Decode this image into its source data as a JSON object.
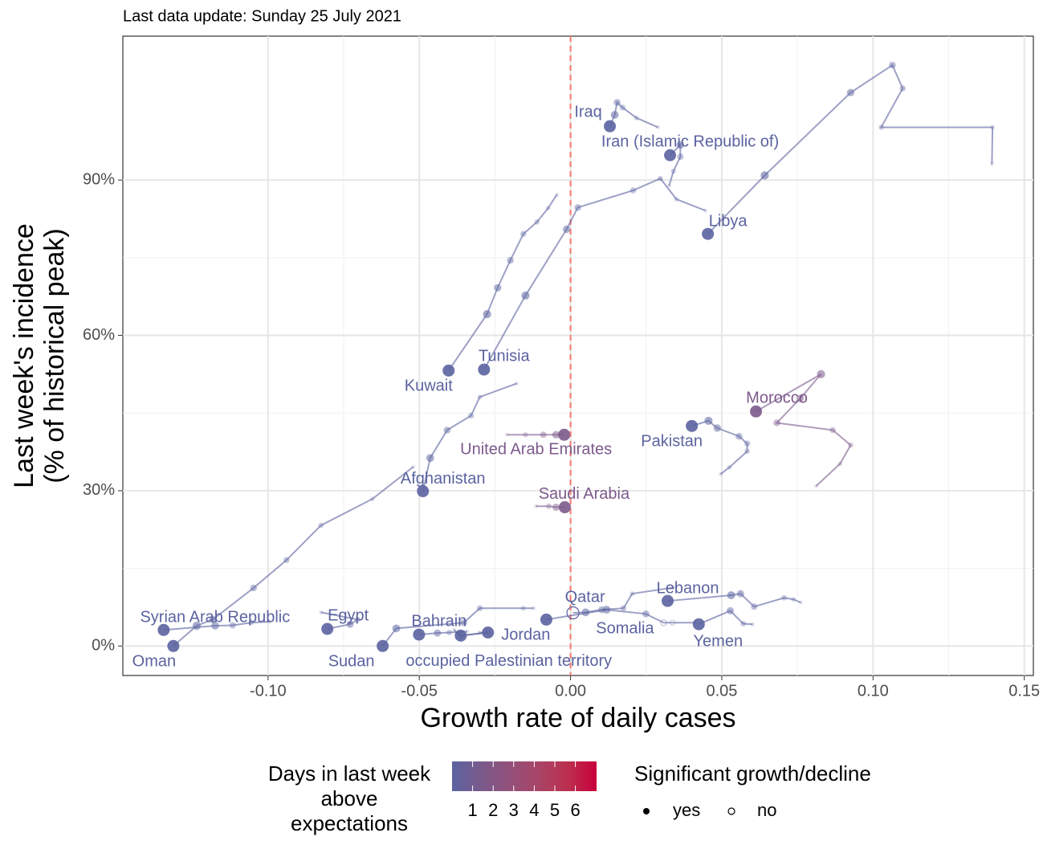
{
  "chart_data": {
    "type": "scatter",
    "subtitle": "Last data update: Sunday 25 July 2021",
    "x_label": "Growth rate of daily cases",
    "y_label": [
      "Last week's incidence",
      "(% of historical peak)"
    ],
    "xlim": [
      -0.148,
      0.153
    ],
    "ylim": [
      -5.7,
      117.8
    ],
    "xticks": [
      {
        "value": -0.1,
        "label": "-0.10"
      },
      {
        "value": -0.05,
        "label": "-0.05"
      },
      {
        "value": 0,
        "label": "0.00"
      },
      {
        "value": 0.05,
        "label": "0.05"
      },
      {
        "value": 0.1,
        "label": "0.10"
      },
      0.15
    ],
    "yticks": [
      {
        "value": 0,
        "label": "0%"
      },
      {
        "value": 30,
        "label": "30%"
      },
      {
        "value": 60,
        "label": "60%"
      },
      {
        "value": 90,
        "label": "90%"
      }
    ],
    "grid": true,
    "reference_line_x": 0,
    "reference_line_color": "#f8766d",
    "series": [
      {
        "name": "Kuwait",
        "color": "#5b63a0",
        "x": [
          -0.0045,
          -0.0074,
          -0.0111,
          -0.0156,
          -0.0199,
          -0.0241,
          -0.0276,
          -0.0403
        ],
        "y": [
          87.2,
          84.6,
          81.9,
          79.6,
          74.5,
          69.2,
          64.1,
          53.2
        ]
      },
      {
        "name": "Tunisia",
        "color": "#5b63a0",
        "x": [
          0.0446,
          0.035,
          0.0297,
          0.0207,
          0.0024,
          -0.0013,
          -0.0149,
          -0.0286
        ],
        "y": [
          84.1,
          86.3,
          90.3,
          88.0,
          84.7,
          80.5,
          67.7,
          53.4
        ]
      },
      {
        "name": "Iraq",
        "color": "#5b63a0",
        "x": [
          0.0289,
          0.0218,
          0.0172,
          0.0154,
          0.0146,
          0.013
        ],
        "y": [
          100.2,
          102.0,
          104.0,
          105.0,
          102.6,
          100.4
        ]
      },
      {
        "name": "Iran (Islamic Republic of)",
        "color": "#5b63a0",
        "x": [
          0.0326,
          0.034,
          0.0363,
          0.0363,
          0.0329
        ],
        "y": [
          88.9,
          91.7,
          94.5,
          96.8,
          94.8
        ]
      },
      {
        "name": "Libya",
        "color": "#5b63a0",
        "x": [
          0.1393,
          0.1395,
          0.1027,
          0.1098,
          0.1064,
          0.0926,
          0.0642,
          0.0454
        ],
        "y": [
          93.1,
          100.2,
          100.2,
          107.7,
          112.2,
          106.9,
          90.9,
          79.6
        ]
      },
      {
        "name": "Afghanistan",
        "color": "#5b63a0",
        "x": [
          -0.0178,
          -0.03,
          -0.0329,
          -0.0408,
          -0.0464,
          -0.0488
        ],
        "y": [
          50.7,
          48.1,
          44.5,
          41.7,
          36.3,
          29.9
        ]
      },
      {
        "name": "Syrian Arab Republic",
        "color": "#5b63a0",
        "x": [
          -0.0995,
          -0.1056,
          -0.1117,
          -0.1175,
          -0.1345
        ],
        "y": [
          4.7,
          4.5,
          4.0,
          3.9,
          3.1
        ]
      },
      {
        "name": "Oman",
        "color": "#5b63a0",
        "x": [
          -0.052,
          -0.0655,
          -0.0825,
          -0.0939,
          -0.1048,
          -0.1183,
          -0.1236,
          -0.1313
        ],
        "y": [
          34.6,
          28.4,
          23.3,
          16.6,
          11.2,
          5.1,
          3.9,
          0
        ]
      },
      {
        "name": "Egypt",
        "color": "#5b63a0",
        "x": [
          -0.0825,
          -0.0703,
          -0.0729,
          -0.0804
        ],
        "y": [
          6.5,
          5.1,
          4.2,
          3.3
        ]
      },
      {
        "name": "Sudan",
        "color": "#5b63a0",
        "x": [
          -0.0122,
          -0.0156,
          -0.03,
          -0.0353,
          -0.0576,
          -0.0621
        ],
        "y": [
          7.3,
          7.3,
          7.3,
          4.5,
          3.4,
          0
        ]
      },
      {
        "name": "Bahrain",
        "color": "#5b63a0",
        "x": [
          -0.0342,
          -0.0401,
          -0.044,
          -0.0501
        ],
        "y": [
          2.8,
          2.6,
          2.5,
          2.2
        ]
      },
      {
        "name": "Jordan",
        "color": "#5b63a0",
        "x": [
          -0.0302,
          -0.0273,
          -0.0363
        ],
        "y": [
          2.6,
          2.6,
          2.0
        ]
      },
      {
        "name": "occupied Palestinian territory",
        "color": "#5b63a0",
        "x": [
          -0.0385,
          -0.0363,
          -0.0273
        ],
        "y": [
          3.1,
          2.0,
          2.6
        ]
      },
      {
        "name": "Qatar",
        "color": "#5b63a0",
        "x": [
          0.0342,
          0.0204,
          0.0175,
          0.0103,
          0.005,
          0.0008
        ],
        "y": [
          11.3,
          10.1,
          7.3,
          7.0,
          6.5,
          6.4
        ],
        "significant": [
          true,
          true,
          true,
          true,
          true,
          false
        ]
      },
      {
        "name": "Somalia",
        "color": "#5b63a0",
        "x": [
          0.0416,
          0.0337,
          0.0308,
          0.0249,
          0.0119,
          -0.008
        ],
        "y": [
          4.5,
          4.5,
          4.5,
          6.2,
          7.0,
          5.1
        ],
        "significant": [
          false,
          false,
          false,
          true,
          true,
          true
        ]
      },
      {
        "name": "Lebanon",
        "color": "#5b63a0",
        "x": [
          0.0761,
          0.0737,
          0.0706,
          0.0607,
          0.0562,
          0.0531,
          0.0321
        ],
        "y": [
          8.4,
          9.0,
          9.3,
          7.6,
          10.1,
          9.8,
          8.7
        ]
      },
      {
        "name": "Yemen",
        "color": "#5b63a0",
        "x": [
          0.0602,
          0.0571,
          0.0528,
          0.0424
        ],
        "y": [
          4.2,
          4.3,
          6.8,
          4.2
        ]
      },
      {
        "name": "Pakistan",
        "color": "#5b63a0",
        "x": [
          0.0496,
          0.0525,
          0.0584,
          0.0584,
          0.0557,
          0.0485,
          0.0456,
          0.0401
        ],
        "y": [
          33.2,
          34.5,
          37.6,
          39.1,
          40.5,
          42.1,
          43.5,
          42.5
        ]
      },
      {
        "name": "Morocco",
        "color": "#7c5a8c",
        "x": [
          0.0812,
          0.0891,
          0.0926,
          0.0867,
          0.0682,
          0.0759,
          0.0828,
          0.0613
        ],
        "y": [
          30.9,
          35.2,
          38.8,
          41.7,
          43.1,
          47.8,
          52.5,
          45.3
        ]
      },
      {
        "name": "United Arab Emirates",
        "color": "#7c5a8c",
        "x": [
          -0.021,
          -0.0149,
          -0.009,
          -0.0048,
          -0.0021
        ],
        "y": [
          40.8,
          40.8,
          40.8,
          40.8,
          40.8
        ]
      },
      {
        "name": "Saudi Arabia",
        "color": "#7c5a8c",
        "x": [
          -0.0114,
          -0.0072,
          -0.0048,
          -0.0019
        ],
        "y": [
          27.0,
          27.0,
          26.8,
          26.8
        ]
      }
    ],
    "legend": {
      "color_title": [
        "Days in last week",
        "above",
        "expectations"
      ],
      "color_ticks": [
        1,
        2,
        3,
        4,
        5,
        6
      ],
      "colors": [
        "#5b63a0",
        "#7a5a8c",
        "#93507a",
        "#a94466",
        "#bc2f4f",
        "#c8003a"
      ],
      "size_title": "Significant growth/decline",
      "size_labels": [
        "yes",
        "no"
      ]
    }
  }
}
